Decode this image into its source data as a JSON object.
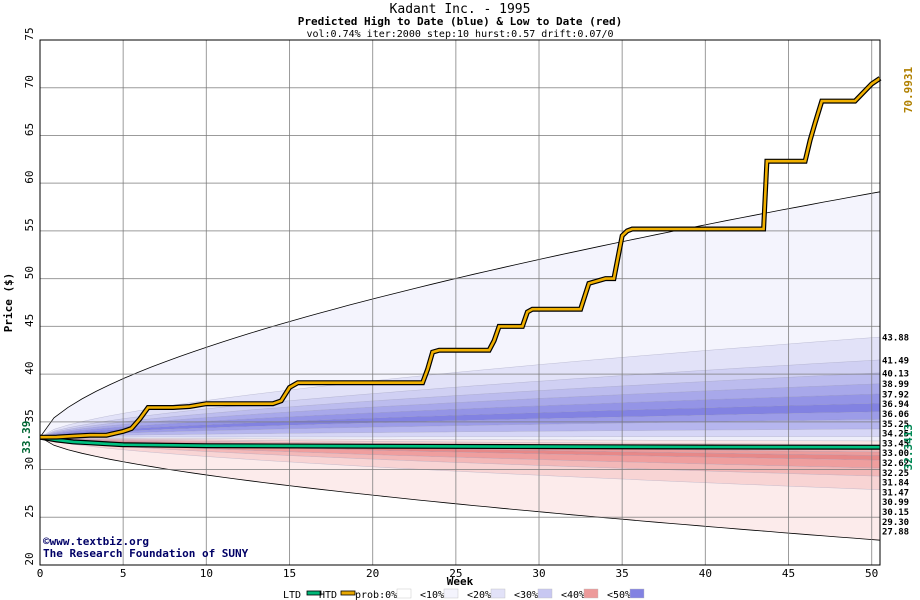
{
  "chart_data": {
    "type": "area",
    "title": "Kadant Inc. - 1995",
    "subtitle": "Predicted High to Date (blue) &  Low to Date (red)",
    "params": "vol:0.74% iter:2000 step:10 hurst:0.57 drift:0.07/0",
    "xlabel": "Week",
    "ylabel": "Price ($)",
    "xlim": [
      0,
      50.5
    ],
    "ylim": [
      20,
      75
    ],
    "x_ticks": [
      0,
      5,
      10,
      15,
      20,
      25,
      30,
      35,
      40,
      45,
      50
    ],
    "y_ticks": [
      20,
      25,
      30,
      35,
      40,
      45,
      50,
      55,
      60,
      65,
      70,
      75
    ],
    "grid": true,
    "start_price": 33.39,
    "start_label": "33.39",
    "end_htd_label": "70.9931",
    "end_ltd_label": "32.3413",
    "right_labels": [
      "43.88",
      "41.49",
      "40.13",
      "38.99",
      "37.92",
      "36.94",
      "36.06",
      "35.25",
      "34.25",
      "33.45",
      "33.00",
      "32.62",
      "32.25",
      "31.84",
      "31.47",
      "30.99",
      "30.15",
      "29.30",
      "27.88"
    ],
    "right_label_values": [
      43.88,
      41.49,
      40.13,
      38.99,
      37.92,
      36.94,
      36.06,
      35.25,
      34.25,
      33.45,
      33.0,
      32.62,
      32.25,
      31.84,
      31.47,
      30.99,
      30.15,
      29.3,
      27.88
    ],
    "upper_band_ends": [
      59.1,
      43.88,
      41.49,
      40.13,
      38.99,
      37.92,
      36.94,
      36.06,
      35.25,
      34.25,
      33.45
    ],
    "lower_band_ends": [
      33.0,
      32.62,
      32.25,
      31.84,
      31.47,
      30.99,
      30.15,
      29.3,
      27.88,
      22.6
    ],
    "band_colors": [
      "#f4f4fd",
      "#e2e2f8",
      "#d0d0f3",
      "#bcbcee",
      "#a8a8ea",
      "#9494e6",
      "#8282e2",
      "#9c9ce8",
      "#b6b6ee",
      "#d6d6f6",
      "#eeeefa",
      "#f7e4e4",
      "#f3cccc",
      "#efb4b4",
      "#eb9c9c",
      "#e78888",
      "#ef9e9e",
      "#f3b8b8",
      "#f8d4d4",
      "#fcebeb"
    ],
    "htd_series": {
      "name": "HTD",
      "x": [
        0,
        1,
        2,
        3,
        4,
        5,
        5.5,
        6,
        6.5,
        7,
        8,
        9,
        10,
        11,
        12,
        13,
        14,
        14.5,
        15,
        15.5,
        16,
        17,
        18,
        19,
        20,
        21,
        22,
        23,
        23.3,
        23.6,
        24,
        25,
        26,
        27,
        27.3,
        27.6,
        28,
        29,
        29.3,
        29.6,
        30,
        31,
        32,
        32.5,
        33,
        34,
        34.5,
        35,
        35.3,
        35.6,
        36,
        37,
        38,
        39,
        40,
        41,
        42,
        43,
        43.5,
        43.7,
        44,
        45,
        46,
        46.3,
        46.6,
        47,
        48,
        49,
        50,
        50.5
      ],
      "y": [
        33.39,
        33.4,
        33.5,
        33.6,
        33.6,
        34.0,
        34.3,
        35.3,
        36.5,
        36.5,
        36.5,
        36.6,
        36.9,
        36.9,
        36.9,
        36.9,
        36.9,
        37.2,
        38.6,
        39.1,
        39.1,
        39.1,
        39.1,
        39.1,
        39.1,
        39.1,
        39.1,
        39.1,
        40.5,
        42.3,
        42.5,
        42.5,
        42.5,
        42.5,
        43.5,
        45.0,
        45.0,
        45.0,
        46.5,
        46.8,
        46.8,
        46.8,
        46.8,
        46.8,
        49.5,
        50.0,
        50.0,
        54.5,
        55.0,
        55.2,
        55.2,
        55.2,
        55.2,
        55.2,
        55.2,
        55.2,
        55.2,
        55.2,
        55.2,
        62.3,
        62.3,
        62.3,
        62.3,
        64.5,
        66.3,
        68.6,
        68.6,
        68.6,
        70.4,
        70.99
      ]
    },
    "ltd_series": {
      "name": "LTD",
      "x": [
        0,
        1,
        2,
        3,
        4,
        5,
        10,
        20,
        30,
        40,
        50,
        50.5
      ],
      "y": [
        33.39,
        33.1,
        32.9,
        32.8,
        32.7,
        32.6,
        32.5,
        32.45,
        32.4,
        32.36,
        32.34,
        32.34
      ]
    },
    "legend": {
      "position": "bottom",
      "entries": [
        {
          "label": "LTD",
          "color": "#00b878"
        },
        {
          "label": "HTD",
          "color": "#e8a800"
        },
        {
          "label": "prob:0%",
          "color": "#ffffff"
        },
        {
          "label": "<10%",
          "color": "#f4f4fd"
        },
        {
          "label": "<20%",
          "color": "#e2e2f8"
        },
        {
          "label": "<30%",
          "color": "#c8c8f2"
        },
        {
          "label": "<40%",
          "color": "#ed9a9a"
        },
        {
          "label": "<50%",
          "color": "#8282e2"
        }
      ]
    }
  },
  "watermark": {
    "line1": "©www.textbiz.org",
    "line2": "The Research Foundation of SUNY"
  }
}
